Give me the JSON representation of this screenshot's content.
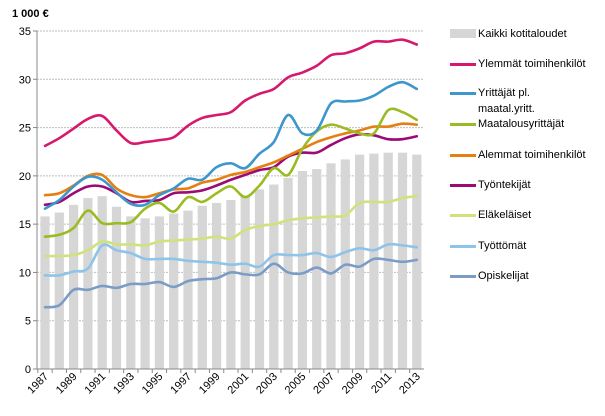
{
  "chart_data": {
    "type": "bar+line",
    "ylabel": "1 000 €",
    "ylim": [
      0,
      35
    ],
    "yticks": [
      "0",
      "5",
      "10",
      "15",
      "20",
      "25",
      "30",
      "35"
    ],
    "grid": true,
    "legend_placement": "right",
    "x": [
      1987,
      1988,
      1989,
      1990,
      1991,
      1992,
      1993,
      1994,
      1995,
      1996,
      1997,
      1998,
      1999,
      2000,
      2001,
      2002,
      2003,
      2004,
      2005,
      2006,
      2007,
      2008,
      2009,
      2010,
      2011,
      2012,
      2013
    ],
    "xtick_labels": [
      "1987",
      "1989",
      "1991",
      "1993",
      "1995",
      "1997",
      "1999",
      "2001",
      "2003",
      "2005",
      "2007",
      "2009",
      "2011",
      "2013"
    ],
    "bars": {
      "name": "Kaikki kotitaloudet",
      "color": "#d6d6d6",
      "values": [
        15.8,
        16.2,
        17.0,
        17.7,
        17.9,
        16.8,
        15.8,
        15.6,
        15.8,
        16.1,
        16.4,
        16.9,
        17.2,
        17.5,
        17.9,
        18.6,
        19.1,
        19.8,
        20.5,
        20.7,
        21.3,
        21.7,
        22.2,
        22.3,
        22.4,
        22.4,
        22.2
      ]
    },
    "series": [
      {
        "name": "Ylemmät toimihenkilöt",
        "color": "#d6186e",
        "values": [
          23.1,
          23.9,
          24.9,
          25.9,
          26.2,
          24.7,
          23.4,
          23.5,
          23.7,
          24.0,
          25.2,
          26.0,
          26.3,
          26.6,
          27.8,
          28.5,
          29.0,
          30.2,
          30.7,
          31.4,
          32.5,
          32.7,
          33.2,
          33.9,
          33.9,
          34.1,
          33.6
        ]
      },
      {
        "name": "Yrittäjät pl. maatal.yritt.",
        "color": "#3d97cc",
        "values": [
          16.6,
          17.5,
          18.9,
          19.9,
          19.6,
          18.3,
          17.1,
          17.0,
          18.0,
          18.7,
          19.7,
          19.6,
          20.9,
          21.3,
          20.8,
          22.3,
          23.5,
          26.3,
          24.4,
          24.7,
          27.5,
          27.7,
          27.8,
          28.3,
          29.2,
          29.7,
          29.0
        ]
      },
      {
        "name": "Maatalousyrittäjät",
        "color": "#9bbb23",
        "values": [
          13.7,
          13.9,
          14.6,
          16.4,
          15.1,
          15.1,
          15.2,
          16.6,
          17.2,
          16.3,
          17.8,
          17.3,
          18.2,
          18.9,
          17.8,
          19.0,
          20.8,
          20.1,
          22.8,
          24.6,
          25.3,
          24.9,
          24.4,
          24.4,
          26.8,
          26.6,
          25.8
        ]
      },
      {
        "name": "Alemmat toimihenkilöt",
        "color": "#e57f12",
        "values": [
          18.0,
          18.2,
          19.0,
          20.0,
          20.1,
          18.7,
          18.0,
          17.8,
          18.2,
          18.6,
          18.7,
          19.3,
          19.6,
          20.1,
          20.4,
          20.9,
          21.4,
          22.1,
          22.8,
          23.5,
          24.0,
          24.4,
          24.7,
          25.1,
          25.1,
          25.4,
          25.3
        ]
      },
      {
        "name": "Työntekijät",
        "color": "#9c0a76",
        "values": [
          17.0,
          17.3,
          18.2,
          18.9,
          18.9,
          18.2,
          17.3,
          17.4,
          17.5,
          18.2,
          18.3,
          18.5,
          19.0,
          19.6,
          20.1,
          20.6,
          20.9,
          22.0,
          22.4,
          22.4,
          23.2,
          23.9,
          24.3,
          24.2,
          23.8,
          23.8,
          24.1
        ]
      },
      {
        "name": "Eläkeläiset",
        "color": "#cfe27c",
        "values": [
          11.7,
          11.7,
          11.8,
          12.3,
          13.2,
          12.9,
          12.9,
          12.8,
          13.2,
          13.3,
          13.4,
          13.5,
          13.7,
          13.5,
          14.4,
          14.8,
          15.0,
          15.4,
          15.6,
          15.7,
          15.8,
          15.9,
          17.2,
          17.3,
          17.3,
          17.7,
          17.9
        ]
      },
      {
        "name": "Työttömät",
        "color": "#8ec3ea",
        "values": [
          9.7,
          9.7,
          10.1,
          10.4,
          12.8,
          12.3,
          12.0,
          11.4,
          11.4,
          11.4,
          11.2,
          11.1,
          11.0,
          10.8,
          10.9,
          10.6,
          11.8,
          11.8,
          11.8,
          12.0,
          11.6,
          12.1,
          12.5,
          12.3,
          12.9,
          12.8,
          12.6
        ]
      },
      {
        "name": "Opiskelijat",
        "color": "#7a9cc6",
        "values": [
          6.4,
          6.6,
          8.2,
          8.2,
          8.6,
          8.4,
          8.8,
          8.8,
          9.0,
          8.5,
          9.1,
          9.3,
          9.4,
          10.0,
          9.8,
          9.8,
          10.9,
          10.0,
          9.9,
          10.5,
          9.9,
          10.8,
          10.6,
          11.4,
          11.3,
          11.1,
          11.3
        ]
      }
    ]
  }
}
